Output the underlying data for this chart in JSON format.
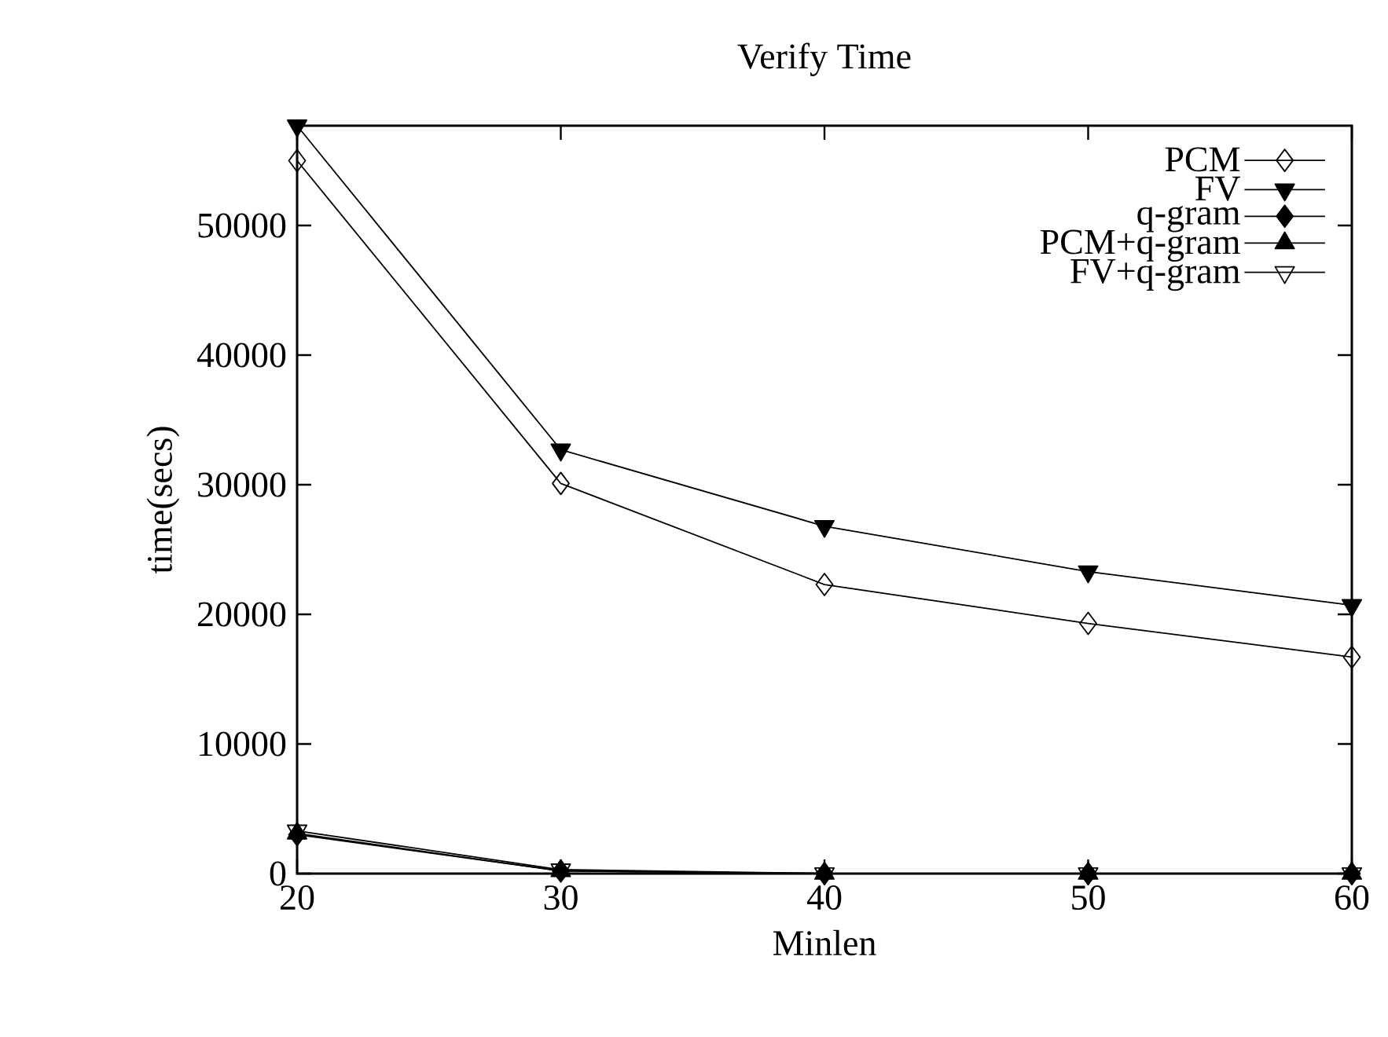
{
  "chart_data": {
    "type": "line",
    "title": "Verify Time",
    "xlabel": "Minlen",
    "ylabel": "time(secs)",
    "x": [
      20,
      30,
      40,
      50,
      60
    ],
    "xlim": [
      20,
      60
    ],
    "xticks": [
      20,
      30,
      40,
      50,
      60
    ],
    "ylim": [
      0,
      57700
    ],
    "yticks": [
      0,
      10000,
      20000,
      30000,
      40000,
      50000
    ],
    "legend": "top right",
    "grid": false,
    "series": [
      {
        "name": "PCM",
        "color": "#000000",
        "marker": "diamond-open",
        "values": [
          55000,
          30100,
          22300,
          19300,
          16700
        ]
      },
      {
        "name": "FV",
        "color": "#000000",
        "marker": "triangle-down-filled",
        "values": [
          57700,
          32700,
          26800,
          23300,
          20700
        ]
      },
      {
        "name": "q-gram",
        "color": "#000000",
        "marker": "diamond-filled",
        "values": [
          3000,
          200,
          0,
          0,
          0
        ]
      },
      {
        "name": "PCM+q-gram",
        "color": "#000000",
        "marker": "triangle-filled",
        "values": [
          3100,
          200,
          0,
          0,
          0
        ]
      },
      {
        "name": "FV+q-gram",
        "color": "#000000",
        "marker": "triangle-down-open",
        "values": [
          3300,
          300,
          0,
          0,
          0
        ]
      }
    ]
  }
}
